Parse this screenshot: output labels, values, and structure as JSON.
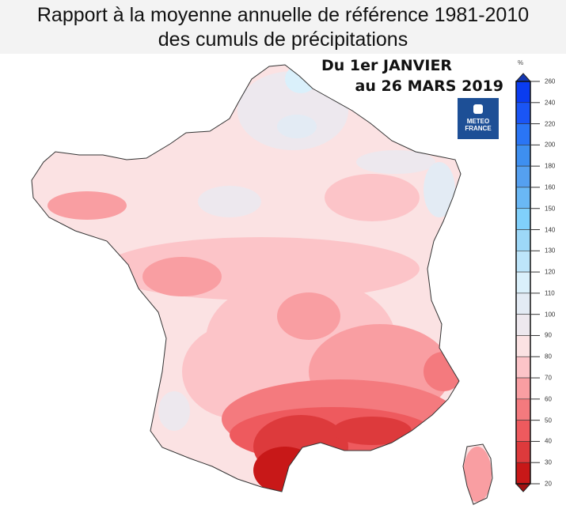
{
  "title": {
    "line1": "Rapport à la moyenne annuelle de référence 1981-2010",
    "line2": "des cumuls de précipitations"
  },
  "period": {
    "line1": "Du 1er JANVIER",
    "line2": "au 26 MARS 2019"
  },
  "logo": {
    "text1": "METEO",
    "text2": "FRANCE",
    "color": "#1d4f96"
  },
  "legend": {
    "unit": "%",
    "ticks": [
      "260",
      "240",
      "220",
      "200",
      "180",
      "160",
      "150",
      "140",
      "130",
      "120",
      "110",
      "100",
      "90",
      "80",
      "70",
      "60",
      "50",
      "40",
      "30",
      "20"
    ],
    "colors": [
      "#0a3cf0",
      "#1a55f5",
      "#2a75f5",
      "#3e8ff0",
      "#55a0f0",
      "#6ab8f5",
      "#80d0fb",
      "#9dd8f8",
      "#bde5fa",
      "#daf0fb",
      "#e3ebf4",
      "#ede8ee",
      "#fbe2e3",
      "#fcc4c8",
      "#f99ea2",
      "#f47a7e",
      "#ee5a5e",
      "#dd3a3c",
      "#c81818"
    ],
    "over_color": "#1437b0",
    "under_color": "#a01010"
  }
}
